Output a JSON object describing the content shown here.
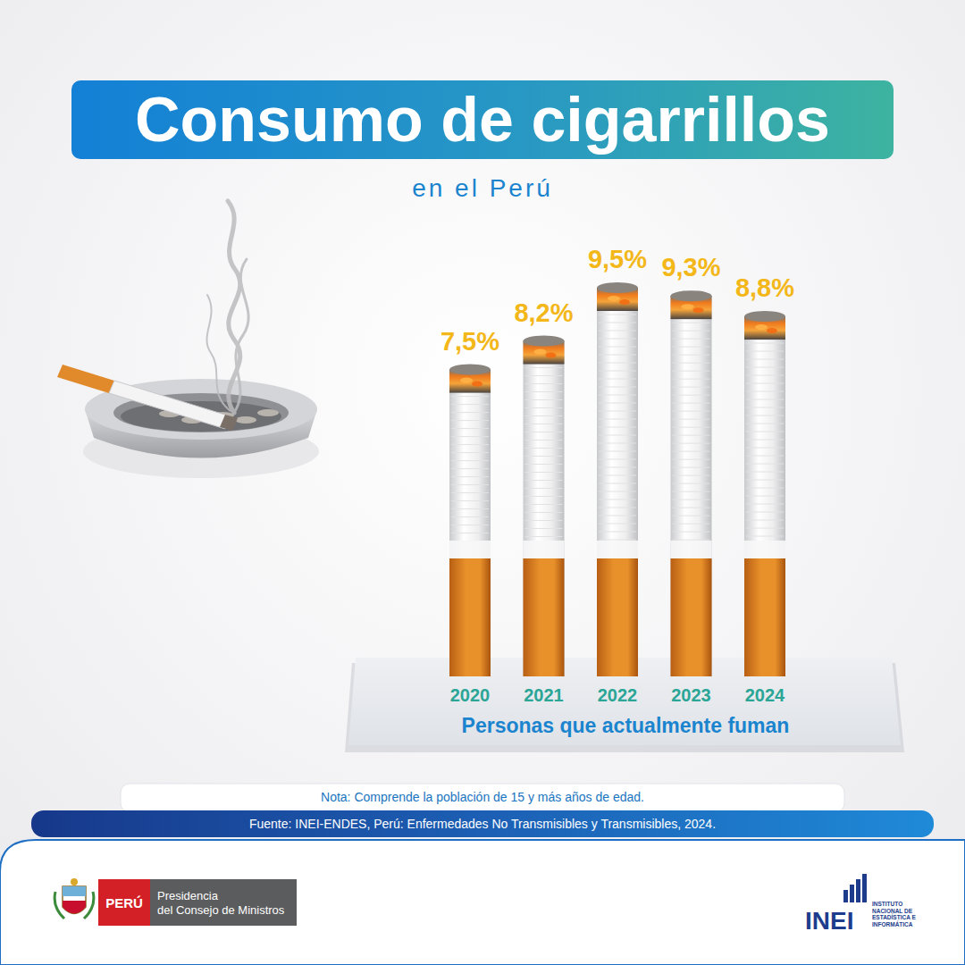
{
  "chart_data": {
    "type": "bar",
    "title": "Consumo de cigarrillos",
    "subtitle": "en el Perú",
    "x_label": "Personas que actualmente fuman",
    "categories": [
      "2020",
      "2021",
      "2022",
      "2023",
      "2024"
    ],
    "values": [
      7.5,
      8.2,
      9.5,
      9.3,
      8.8
    ],
    "value_labels": [
      "7,5%",
      "8,2%",
      "9,5%",
      "9,3%",
      "8,8%"
    ],
    "color": "#e8902a",
    "data_labels": true,
    "tick_labels": "x",
    "grid": false,
    "note": "Nota: Comprende la población de 15 y más años de edad.",
    "source": "Fuente: INEI-ENDES, Perú: Enfermedades No Transmisibles y Transmisibles, 2024."
  },
  "logos": {
    "peru": "PERÚ",
    "pcm": [
      "Presidencia",
      "del Consejo de Ministros"
    ],
    "inei": "INEI",
    "inei_name": [
      "INSTITUTO",
      "NACIONAL DE",
      "ESTADÍSTICA E",
      "INFORMÁTICA"
    ]
  }
}
